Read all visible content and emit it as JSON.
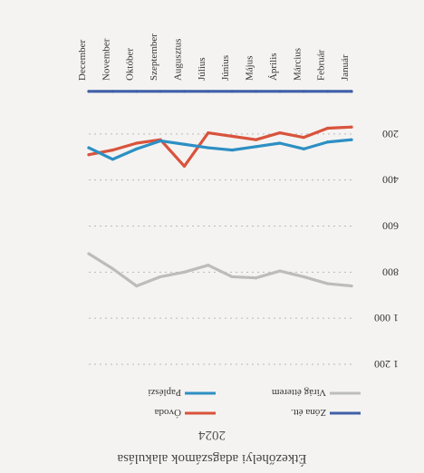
{
  "chart_data": {
    "type": "line",
    "title": "Étkezőhelyi adagszámok alakulása",
    "subtitle": "2024",
    "categories": [
      "Január",
      "Február",
      "Március",
      "Április",
      "Május",
      "Június",
      "Július",
      "Augusztus",
      "Szeptember",
      "Október",
      "November",
      "December"
    ],
    "yticks": [
      "200",
      "400",
      "600",
      "800",
      "1 000",
      "1 200"
    ],
    "ylim": [
      0,
      1200
    ],
    "grid": true,
    "legend_position": "top",
    "series": [
      {
        "name": "Zóna étt.",
        "color": "#3f5fa8",
        "values": [
          15,
          15,
          15,
          15,
          15,
          15,
          15,
          15,
          15,
          15,
          15,
          15
        ]
      },
      {
        "name": "Óvoda",
        "color": "#d9533c",
        "values": [
          170,
          175,
          215,
          195,
          225,
          210,
          195,
          340,
          225,
          240,
          270,
          290
        ]
      },
      {
        "name": "Virág étterem",
        "color": "#bcbcbc",
        "values": [
          860,
          850,
          820,
          795,
          825,
          820,
          770,
          800,
          820,
          860,
          785,
          720
        ]
      },
      {
        "name": "Paplészi",
        "color": "#2d8fc4",
        "values": [
          225,
          235,
          265,
          240,
          255,
          270,
          260,
          245,
          230,
          265,
          310,
          260
        ]
      }
    ]
  }
}
